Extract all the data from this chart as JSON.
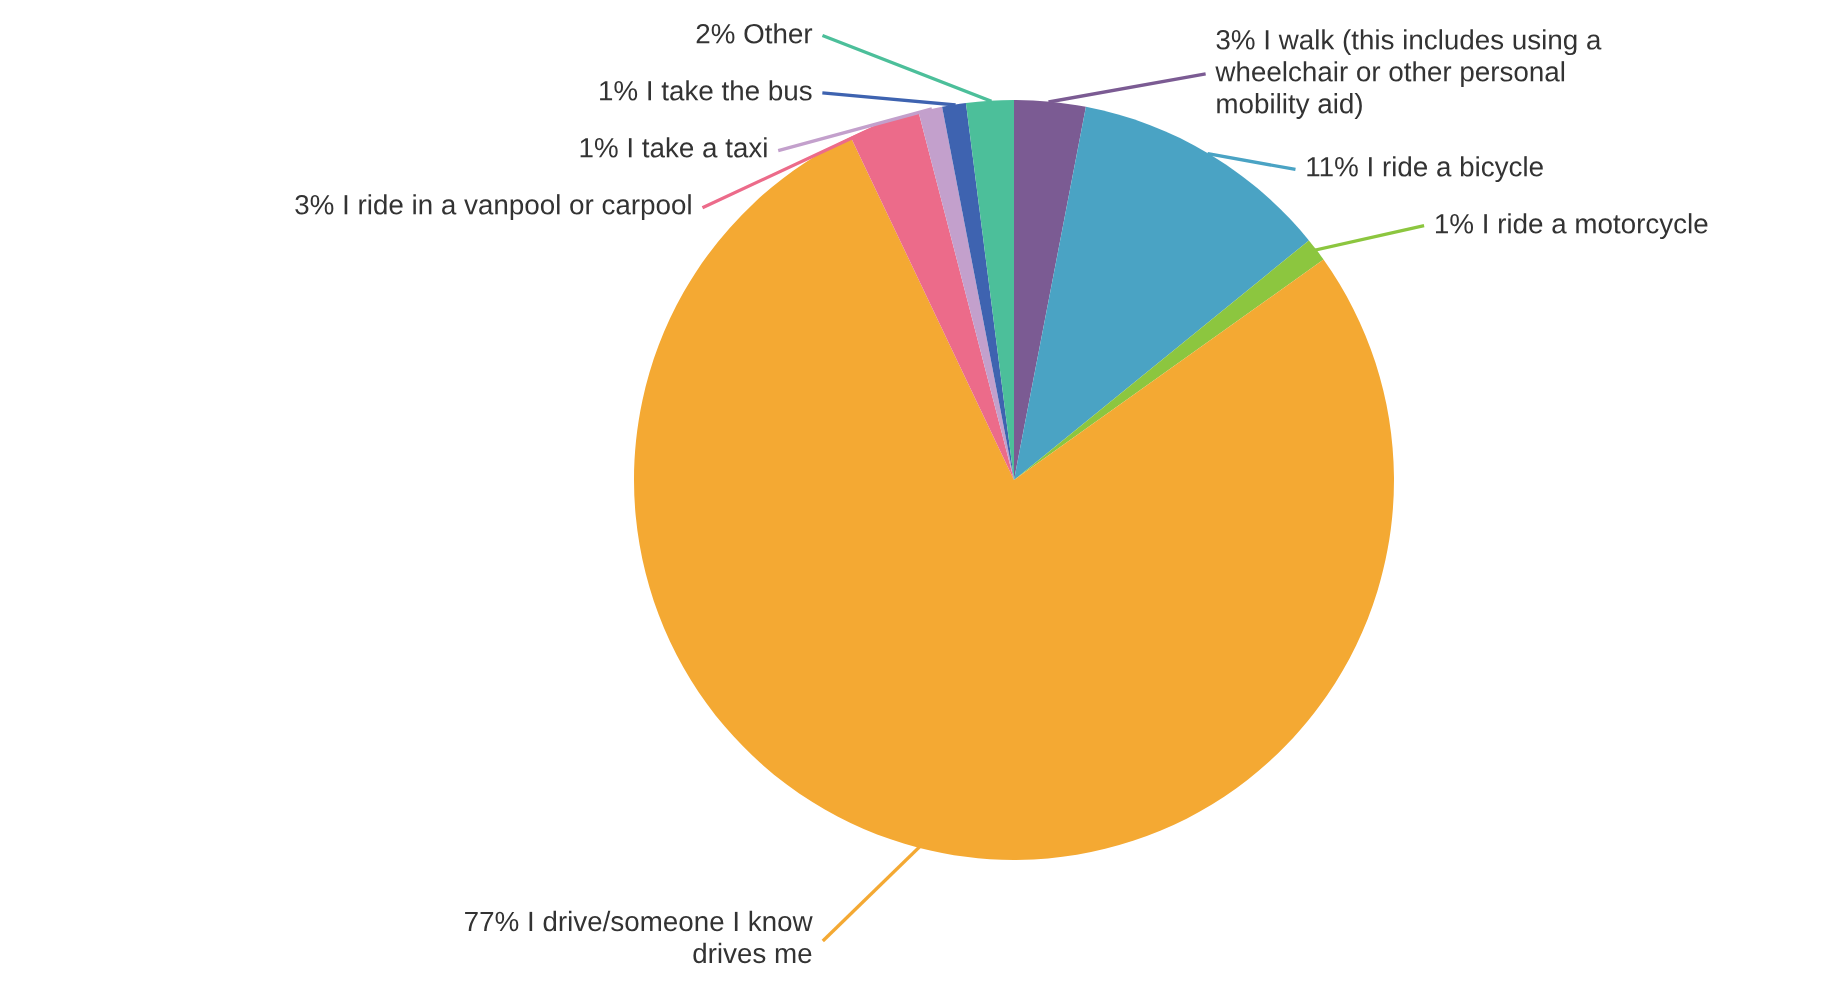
{
  "chart_data": {
    "type": "pie",
    "categories": [
      "I walk (this includes using a\nwheelchair or other personal\nmobility aid)",
      "I ride a bicycle",
      "I ride a motorcycle",
      "I drive/someone I know\ndrives me",
      "I ride in a vanpool or carpool",
      "I take a taxi",
      "I take the bus",
      "Other"
    ],
    "values": [
      3,
      11,
      1,
      77,
      3,
      1,
      1,
      2
    ],
    "value_labels": [
      "3%",
      "11%",
      "1%",
      "77%",
      "3%",
      "1%",
      "1%",
      "2%"
    ],
    "colors": [
      "#7b5b93",
      "#4aa3c4",
      "#8cc63f",
      "#f4a933",
      "#ec6b8a",
      "#c3a0cc",
      "#3e63b0",
      "#4cbf9a"
    ]
  }
}
